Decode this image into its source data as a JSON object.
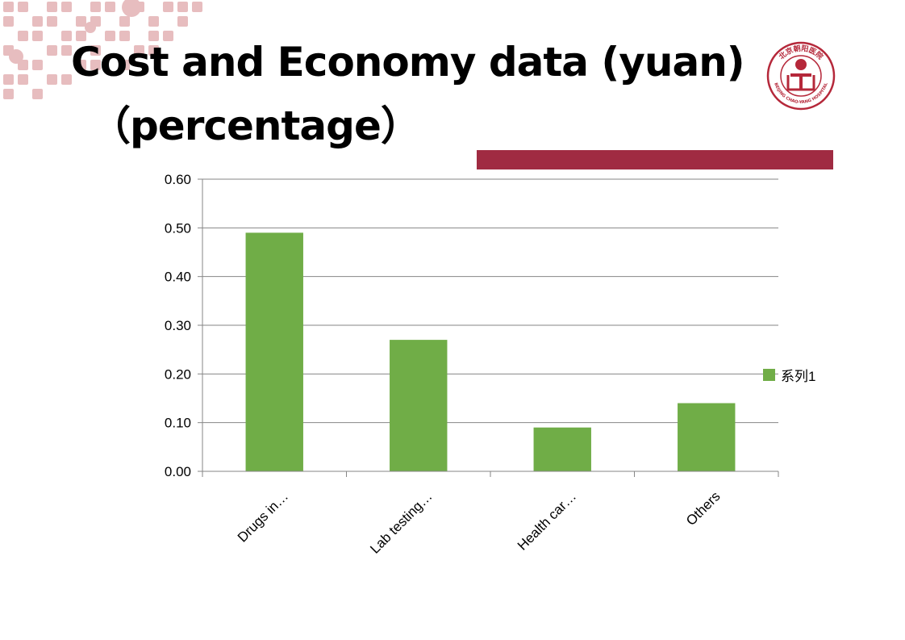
{
  "slide": {
    "title_line1": "Cost and Economy data   (yuan)",
    "title_line2": "（percentage）",
    "accent_color": "#A02B42",
    "decoration_color": "#E7BDBF"
  },
  "logo": {
    "name": "Beijing Chao-Yang Hospital logo",
    "icon": "hospital-cross-icon",
    "top_text": "北京朝阳医院",
    "bottom_text": "BEIJING CHAO-YANG HOSPITAL",
    "color": "#B5283A"
  },
  "chart_data": {
    "type": "bar",
    "categories": [
      "Drugs in…",
      "Lab testing…",
      "Health car…",
      "Others"
    ],
    "series": [
      {
        "name": "系列1",
        "values": [
          0.49,
          0.27,
          0.09,
          0.14
        ],
        "color": "#70AD47"
      }
    ],
    "ylim": [
      0,
      0.6
    ],
    "yticks": [
      "0.00",
      "0.10",
      "0.20",
      "0.30",
      "0.40",
      "0.50",
      "0.60"
    ],
    "ytick_values": [
      0,
      0.1,
      0.2,
      0.3,
      0.4,
      0.5,
      0.6
    ],
    "grid": true,
    "legend_position": "right",
    "gridline_color": "#868686"
  }
}
